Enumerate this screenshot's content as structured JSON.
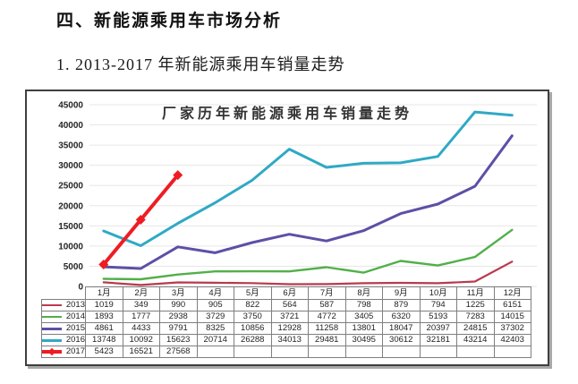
{
  "page": {
    "heading": "四、新能源乘用车市场分析",
    "subheading": "1. 2013-2017 年新能源乘用车销量走势"
  },
  "chart_data": {
    "type": "line",
    "title": "厂家历年新能源乘用车销量走势",
    "categories": [
      "1月",
      "2月",
      "3月",
      "4月",
      "5月",
      "6月",
      "7月",
      "8月",
      "9月",
      "10月",
      "11月",
      "12月"
    ],
    "series": [
      {
        "name": "2013",
        "color": "#B93A4E",
        "stroke_width": 2.2,
        "marker": "none",
        "values": [
          1019,
          349,
          990,
          905,
          822,
          564,
          587,
          798,
          879,
          794,
          1225,
          6151
        ]
      },
      {
        "name": "2014",
        "color": "#52AF4A",
        "stroke_width": 2.4,
        "marker": "none",
        "values": [
          1893,
          1777,
          2938,
          3729,
          3750,
          3721,
          4772,
          3405,
          6320,
          5193,
          7283,
          14015
        ]
      },
      {
        "name": "2015",
        "color": "#5C50A7",
        "stroke_width": 3,
        "marker": "none",
        "values": [
          4861,
          4433,
          9791,
          8325,
          10856,
          12928,
          11258,
          13801,
          18047,
          20397,
          24815,
          37302
        ]
      },
      {
        "name": "2016",
        "color": "#2FA9C5",
        "stroke_width": 3,
        "marker": "none",
        "values": [
          13748,
          10092,
          15623,
          20714,
          26288,
          34013,
          29481,
          30495,
          30612,
          32181,
          43214,
          42403
        ]
      },
      {
        "name": "2017",
        "color": "#EE1C23",
        "stroke_width": 4,
        "marker": "diamond",
        "values": [
          5423,
          16521,
          27568
        ]
      }
    ],
    "ylim": [
      0,
      45000
    ],
    "ytick_step": 5000,
    "grid": "horizontal",
    "gridline_color": "#E8E6E6",
    "axis_label_color": "#262626",
    "legend_position": "table-left-column",
    "table_shown": true
  }
}
